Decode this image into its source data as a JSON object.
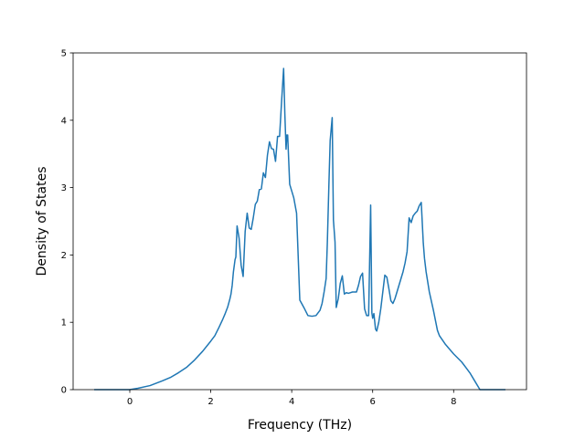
{
  "chart_data": {
    "type": "line",
    "title": "",
    "xlabel": "Frequency (THz)",
    "ylabel": "Density of States",
    "xlim": [
      -1.4,
      9.8
    ],
    "ylim": [
      0,
      5
    ],
    "xticks": [
      0,
      2,
      4,
      6,
      8
    ],
    "xtick_labels": [
      "0",
      "2",
      "4",
      "6",
      "8"
    ],
    "yticks": [
      0,
      1,
      2,
      3,
      4,
      5
    ],
    "ytick_labels": [
      "0",
      "1",
      "2",
      "3",
      "4",
      "5"
    ],
    "grid": false,
    "line_color": "#1f77b4",
    "series": [
      {
        "x": [
          -0.88,
          -0.5,
          0.0,
          0.2,
          0.5,
          0.8,
          1.0,
          1.2,
          1.4,
          1.6,
          1.8,
          2.0,
          2.1,
          2.2,
          2.3,
          2.35,
          2.42,
          2.47,
          2.5,
          2.53,
          2.56,
          2.6,
          2.62,
          2.65,
          2.7,
          2.75,
          2.8,
          2.85,
          2.9,
          2.95,
          3.0,
          3.05,
          3.1,
          3.15,
          3.2,
          3.25,
          3.3,
          3.35,
          3.4,
          3.45,
          3.5,
          3.55,
          3.6,
          3.65,
          3.7,
          3.75,
          3.8,
          3.83,
          3.86,
          3.88,
          3.9,
          3.95,
          4.05,
          4.12,
          4.2,
          4.3,
          4.4,
          4.5,
          4.6,
          4.7,
          4.75,
          4.8,
          4.85,
          4.88,
          4.92,
          4.95,
          5.0,
          5.03,
          5.07,
          5.1,
          5.15,
          5.2,
          5.25,
          5.3,
          5.35,
          5.4,
          5.5,
          5.6,
          5.65,
          5.7,
          5.75,
          5.8,
          5.85,
          5.9,
          5.95,
          5.98,
          6.0,
          6.03,
          6.07,
          6.1,
          6.15,
          6.2,
          6.25,
          6.3,
          6.35,
          6.4,
          6.45,
          6.5,
          6.55,
          6.6,
          6.65,
          6.7,
          6.75,
          6.8,
          6.85,
          6.9,
          6.95,
          7.0,
          7.05,
          7.1,
          7.15,
          7.2,
          7.25,
          7.28,
          7.32,
          7.4,
          7.5,
          7.6,
          7.65,
          7.8,
          8.0,
          8.2,
          8.4,
          8.5,
          8.65,
          8.8,
          9.0,
          9.28
        ],
        "y": [
          0.0,
          0.0,
          0.0,
          0.02,
          0.06,
          0.13,
          0.18,
          0.25,
          0.33,
          0.44,
          0.57,
          0.72,
          0.8,
          0.92,
          1.05,
          1.12,
          1.23,
          1.34,
          1.42,
          1.55,
          1.75,
          1.93,
          1.97,
          2.43,
          2.25,
          1.85,
          1.68,
          2.35,
          2.62,
          2.4,
          2.38,
          2.55,
          2.75,
          2.8,
          2.97,
          2.98,
          3.22,
          3.15,
          3.48,
          3.68,
          3.58,
          3.57,
          3.39,
          3.76,
          3.76,
          4.28,
          4.77,
          4.1,
          3.57,
          3.78,
          3.78,
          3.05,
          2.85,
          2.62,
          1.33,
          1.22,
          1.1,
          1.09,
          1.1,
          1.18,
          1.28,
          1.45,
          1.65,
          2.18,
          3.08,
          3.7,
          4.04,
          2.52,
          2.19,
          1.22,
          1.35,
          1.58,
          1.69,
          1.42,
          1.44,
          1.43,
          1.45,
          1.45,
          1.55,
          1.68,
          1.73,
          1.2,
          1.1,
          1.1,
          2.74,
          1.14,
          1.06,
          1.13,
          0.9,
          0.87,
          1.0,
          1.2,
          1.45,
          1.7,
          1.67,
          1.5,
          1.32,
          1.28,
          1.35,
          1.45,
          1.55,
          1.65,
          1.75,
          1.88,
          2.05,
          2.55,
          2.48,
          2.58,
          2.62,
          2.65,
          2.73,
          2.78,
          2.18,
          1.95,
          1.75,
          1.45,
          1.18,
          0.88,
          0.8,
          0.67,
          0.53,
          0.41,
          0.25,
          0.15,
          0.0,
          0.0,
          0.0,
          0.0
        ]
      }
    ]
  }
}
